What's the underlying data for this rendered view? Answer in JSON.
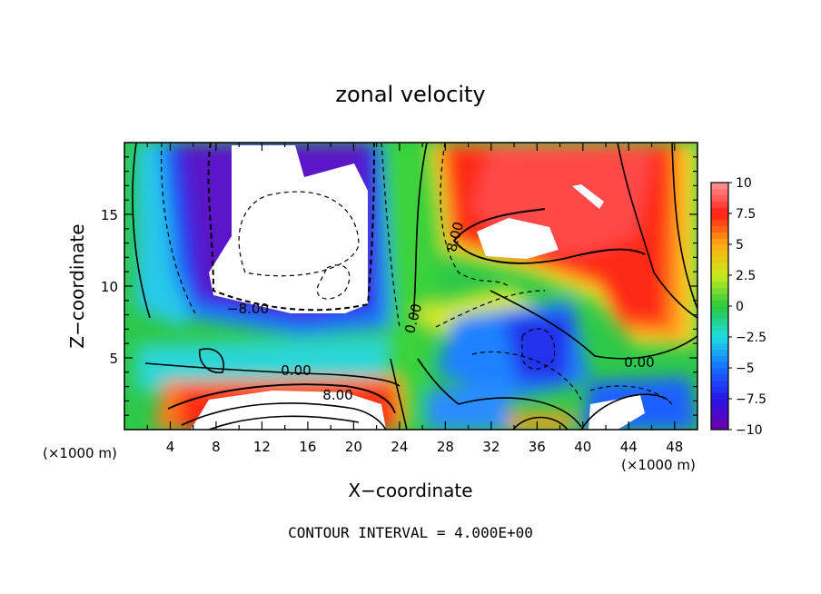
{
  "chart_data": {
    "type": "heatmap",
    "title": "zonal velocity",
    "xlabel": "X−coordinate",
    "ylabel": "Z−coordinate",
    "x_unit_left": "(×1000 m)",
    "x_unit_right": "(×1000 m)",
    "xlim": [
      0,
      50
    ],
    "ylim": [
      0,
      20
    ],
    "x_ticks": [
      4,
      8,
      12,
      16,
      20,
      24,
      28,
      32,
      36,
      40,
      44,
      48
    ],
    "y_ticks": [
      5,
      10,
      15
    ],
    "colorbar": {
      "min": -10,
      "max": 10,
      "ticks": [
        {
          "value": 10,
          "label": "10"
        },
        {
          "value": 7.5,
          "label": "7.5"
        },
        {
          "value": 5,
          "label": "5"
        },
        {
          "value": 2.5,
          "label": "2.5"
        },
        {
          "value": 0,
          "label": "0"
        },
        {
          "value": -2.5,
          "label": "−2.5"
        },
        {
          "value": -5,
          "label": "−5"
        },
        {
          "value": -7.5,
          "label": "−7.5"
        },
        {
          "value": -10,
          "label": "−10"
        }
      ]
    },
    "contour_labels": [
      {
        "text": "−8.00",
        "x": 17.0,
        "y": 8.5
      },
      {
        "text": "0.00",
        "x": 15.0,
        "y": 4.2
      },
      {
        "text": "8.00",
        "x": 17.5,
        "y": 2.5
      },
      {
        "text": "0.00",
        "x": 25.8,
        "y": 7.3
      },
      {
        "text": "8.00",
        "x": 29.0,
        "y": 13.2
      },
      {
        "text": "0.00",
        "x": 44.5,
        "y": 4.5
      }
    ],
    "footer": "CONTOUR INTERVAL = 4.000E+00"
  }
}
